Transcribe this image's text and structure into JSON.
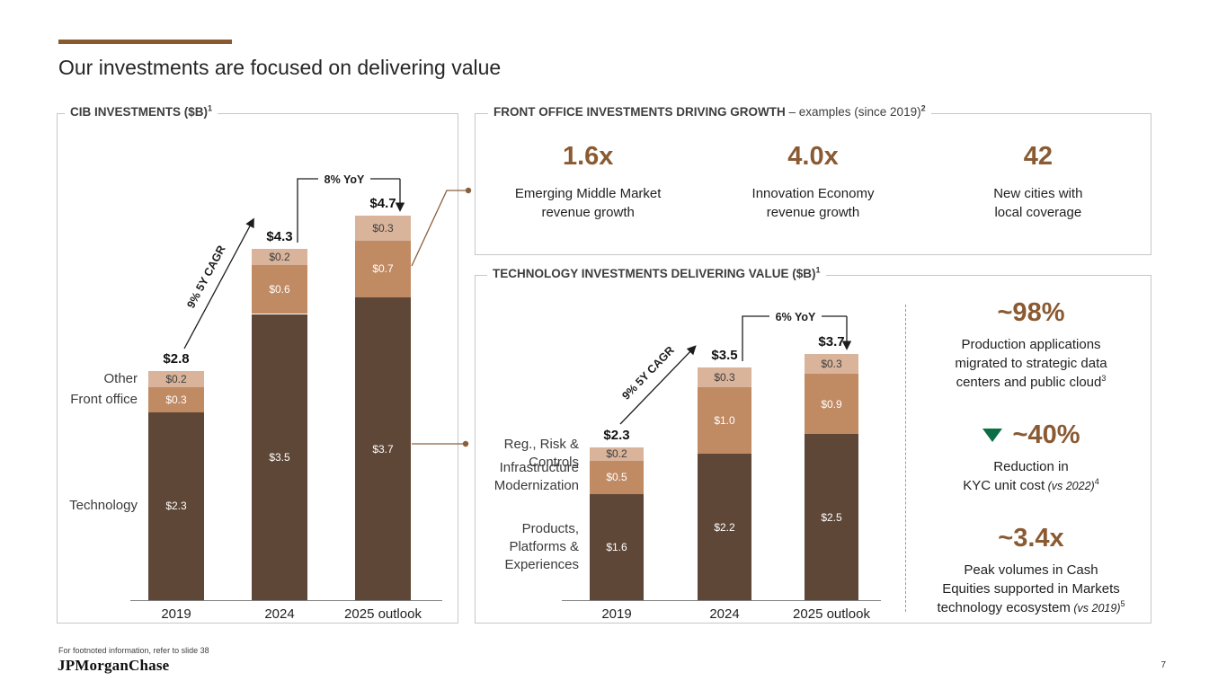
{
  "slide": {
    "title": "Our investments are focused on delivering value",
    "footnote": "For footnoted information, refer to slide 38",
    "logo": "JPMorganChase",
    "page_number": "7"
  },
  "colors": {
    "accent_brown": "#8a592e",
    "big_number_brown": "#8a5a32",
    "bar_dark": "#5e4737",
    "bar_medium": "#c08a63",
    "bar_light": "#d9b49b",
    "green_triangle": "#0b6e45",
    "connector_brown": "#8a5f3d"
  },
  "panels": {
    "cib": {
      "title": "CIB INVESTMENTS ($B)",
      "title_sup": "1"
    },
    "front_office": {
      "title_bold": "FRONT OFFICE INVESTMENTS DRIVING GROWTH",
      "title_rest": " – examples (since 2019)",
      "title_sup": "2",
      "stats": [
        {
          "value": "1.6x",
          "label": "Emerging Middle Market\nrevenue growth"
        },
        {
          "value": "4.0x",
          "label": "Innovation Economy\nrevenue growth"
        },
        {
          "value": "42",
          "label": "New cities with\nlocal coverage"
        }
      ]
    },
    "technology": {
      "title": "TECHNOLOGY INVESTMENTS DELIVERING VALUE ($B)",
      "title_sup": "1",
      "stats": [
        {
          "value": "~98%",
          "label": "Production applications\nmigrated to strategic data\ncenters and public cloud",
          "sup": "3"
        },
        {
          "value": "~40%",
          "label": "Reduction in\nKYC unit cost",
          "italic": " (vs 2022)",
          "sup": "4",
          "icon": "decrease-triangle"
        },
        {
          "value": "~3.4x",
          "label": "Peak volumes in Cash\nEquities supported in Markets\ntechnology ecosystem",
          "italic": " (vs 2019)",
          "sup": "5"
        }
      ]
    }
  },
  "chart_data": [
    {
      "type": "stacked_bar",
      "title": "CIB INVESTMENTS ($B)",
      "unit": "$B",
      "categories": [
        "2019",
        "2024",
        "2025 outlook"
      ],
      "series": [
        {
          "name": "Technology",
          "color": "#5e4737",
          "label_color": "#ffffff",
          "values": [
            2.3,
            3.5,
            3.7
          ],
          "labels": [
            "$2.3",
            "$3.5",
            "$3.7"
          ]
        },
        {
          "name": "Front office",
          "color": "#c08a63",
          "label_color": "#ffffff",
          "values": [
            0.3,
            0.6,
            0.7
          ],
          "labels": [
            "$0.3",
            "$0.6",
            "$0.7"
          ]
        },
        {
          "name": "Other",
          "color": "#d9b49b",
          "label_color": "#3d3d3d",
          "values": [
            0.2,
            0.2,
            0.3
          ],
          "labels": [
            "$0.2",
            "$0.2",
            "$0.3"
          ]
        }
      ],
      "totals": [
        "$2.8",
        "$4.3",
        "$4.7"
      ],
      "annotations": {
        "cagr": "9% 5Y CAGR",
        "yoy": "8% YoY"
      },
      "ylim": [
        0,
        5
      ]
    },
    {
      "type": "stacked_bar",
      "title": "TECHNOLOGY INVESTMENTS DELIVERING VALUE ($B)",
      "unit": "$B",
      "categories": [
        "2019",
        "2024",
        "2025 outlook"
      ],
      "series": [
        {
          "name": "Products,\nPlatforms &\nExperiences",
          "color": "#5e4737",
          "label_color": "#ffffff",
          "values": [
            1.6,
            2.2,
            2.5
          ],
          "labels": [
            "$1.6",
            "$2.2",
            "$2.5"
          ]
        },
        {
          "name": "Infrastructure\nModernization",
          "color": "#c08a63",
          "label_color": "#ffffff",
          "values": [
            0.5,
            1.0,
            0.9
          ],
          "labels": [
            "$0.5",
            "$1.0",
            "$0.9"
          ]
        },
        {
          "name": "Reg., Risk &\nControls",
          "color": "#d9b49b",
          "label_color": "#3d3d3d",
          "values": [
            0.2,
            0.3,
            0.3
          ],
          "labels": [
            "$0.2",
            "$0.3",
            "$0.3"
          ]
        }
      ],
      "totals": [
        "$2.3",
        "$3.5",
        "$3.7"
      ],
      "annotations": {
        "cagr": "9% 5Y CAGR",
        "yoy": "6% YoY"
      },
      "ylim": [
        0,
        4
      ]
    }
  ]
}
